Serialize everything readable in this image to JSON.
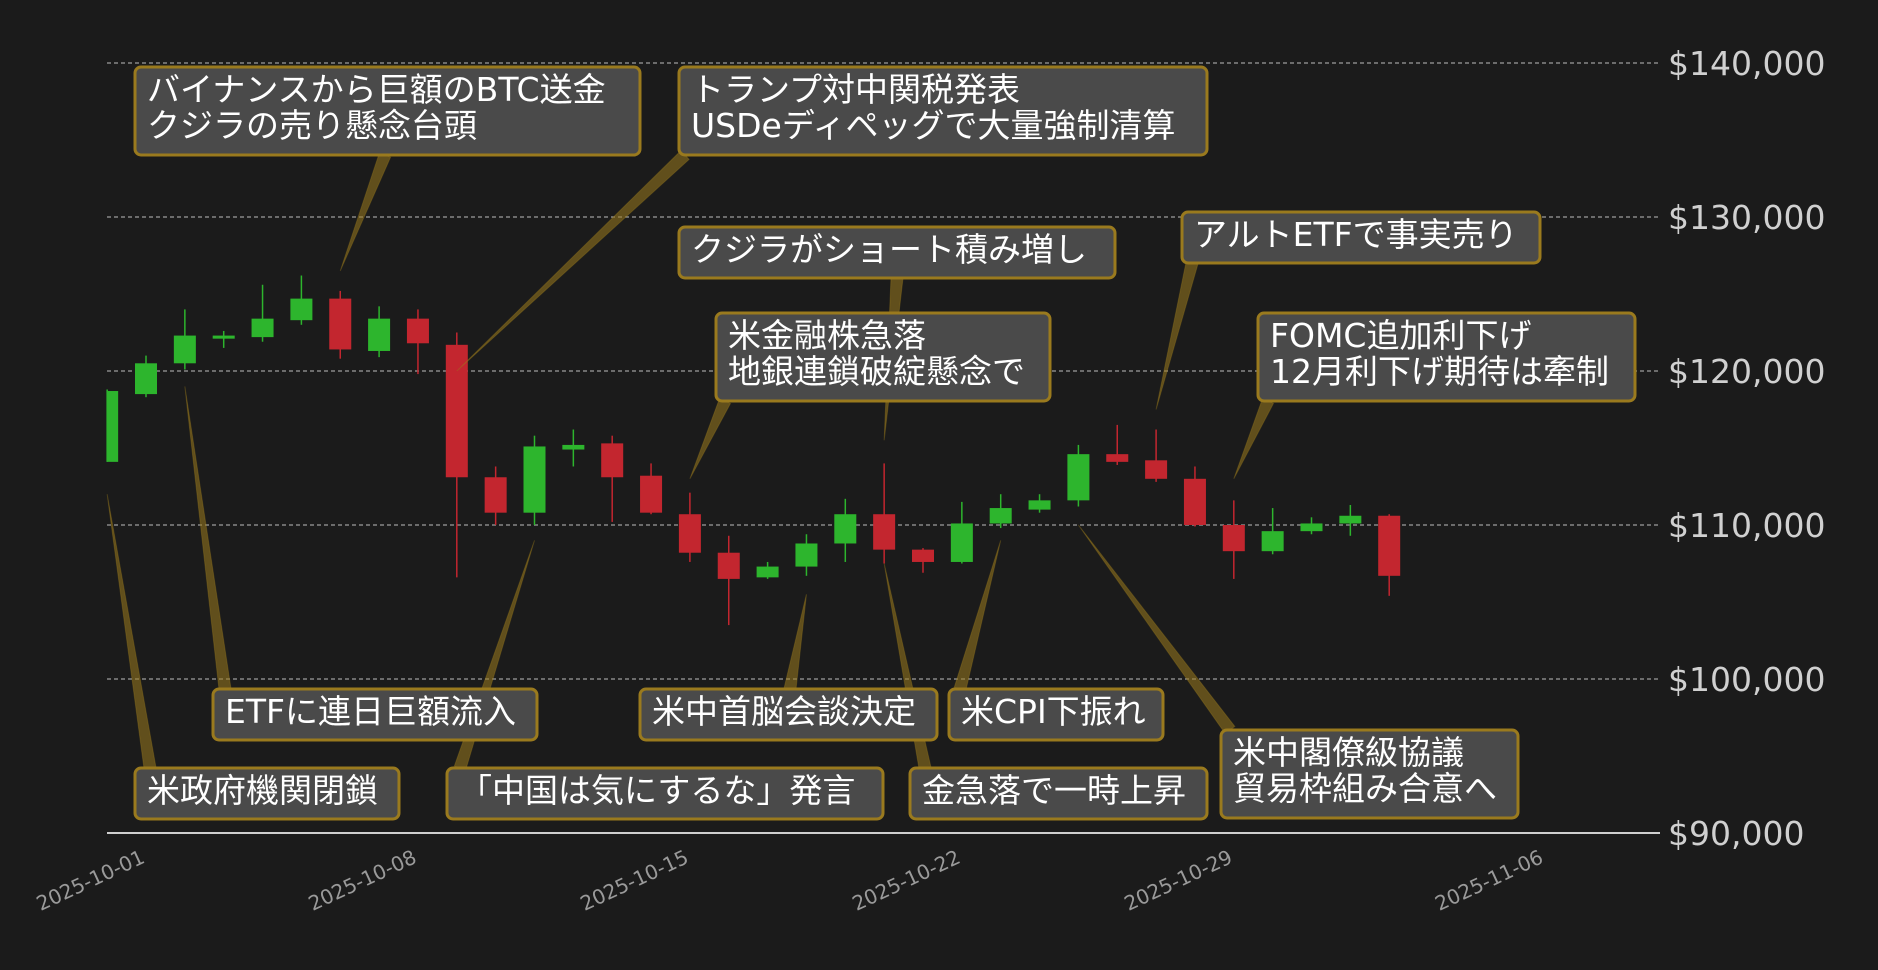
{
  "chart_data": {
    "type": "candlestick",
    "title": "",
    "xlabel": "",
    "ylabel": "",
    "ylim": [
      90000,
      140000
    ],
    "xlim": [
      "2025-10-01",
      "2025-11-06"
    ],
    "x_ticks": [
      "2025-10-01",
      "2025-10-08",
      "2025-10-15",
      "2025-10-22",
      "2025-10-29",
      "2025-11-06"
    ],
    "y_ticks": [
      {
        "value": 90000,
        "label": "$90,000"
      },
      {
        "value": 100000,
        "label": "$100,000"
      },
      {
        "value": 110000,
        "label": "$110,000"
      },
      {
        "value": 120000,
        "label": "$120,000"
      },
      {
        "value": 130000,
        "label": "$130,000"
      },
      {
        "value": 140000,
        "label": "$140,000"
      }
    ],
    "grid": true,
    "colors": {
      "up": "#2db52d",
      "down": "#c3262f",
      "background": "#1b1b1b",
      "annotation_border": "#9a7a1e",
      "annotation_fill": "#4a4a4a"
    },
    "candles": [
      {
        "date": "2025-09-30",
        "open": 114100,
        "high": 118800,
        "low": 114100,
        "close": 118700
      },
      {
        "date": "2025-10-01",
        "open": 118500,
        "high": 121000,
        "low": 118300,
        "close": 120500
      },
      {
        "date": "2025-10-02",
        "open": 120500,
        "high": 124000,
        "low": 120100,
        "close": 122300
      },
      {
        "date": "2025-10-03",
        "open": 122100,
        "high": 122600,
        "low": 121500,
        "close": 122300
      },
      {
        "date": "2025-10-04",
        "open": 122200,
        "high": 125600,
        "low": 121900,
        "close": 123400
      },
      {
        "date": "2025-10-05",
        "open": 123300,
        "high": 126200,
        "low": 123000,
        "close": 124700
      },
      {
        "date": "2025-10-06",
        "open": 124700,
        "high": 125200,
        "low": 120800,
        "close": 121400
      },
      {
        "date": "2025-10-07",
        "open": 121300,
        "high": 124200,
        "low": 120900,
        "close": 123400
      },
      {
        "date": "2025-10-08",
        "open": 123400,
        "high": 124000,
        "low": 119800,
        "close": 121800
      },
      {
        "date": "2025-10-09",
        "open": 121700,
        "high": 122500,
        "low": 106600,
        "close": 113100
      },
      {
        "date": "2025-10-10",
        "open": 113100,
        "high": 113800,
        "low": 110000,
        "close": 110800
      },
      {
        "date": "2025-10-11",
        "open": 110800,
        "high": 115800,
        "low": 110000,
        "close": 115100
      },
      {
        "date": "2025-10-12",
        "open": 114900,
        "high": 116200,
        "low": 113800,
        "close": 115200
      },
      {
        "date": "2025-10-13",
        "open": 115300,
        "high": 115800,
        "low": 110200,
        "close": 113100
      },
      {
        "date": "2025-10-14",
        "open": 113200,
        "high": 114000,
        "low": 110700,
        "close": 110800
      },
      {
        "date": "2025-10-15",
        "open": 110700,
        "high": 112100,
        "low": 107600,
        "close": 108200
      },
      {
        "date": "2025-10-16",
        "open": 108200,
        "high": 109300,
        "low": 103500,
        "close": 106500
      },
      {
        "date": "2025-10-17",
        "open": 106600,
        "high": 107600,
        "low": 106500,
        "close": 107300
      },
      {
        "date": "2025-10-18",
        "open": 107300,
        "high": 109400,
        "low": 106700,
        "close": 108800
      },
      {
        "date": "2025-10-19",
        "open": 108800,
        "high": 111700,
        "low": 107600,
        "close": 110700
      },
      {
        "date": "2025-10-20",
        "open": 110700,
        "high": 114000,
        "low": 107500,
        "close": 108400
      },
      {
        "date": "2025-10-21",
        "open": 108400,
        "high": 108500,
        "low": 106900,
        "close": 107600
      },
      {
        "date": "2025-10-22",
        "open": 107600,
        "high": 111500,
        "low": 107500,
        "close": 110100
      },
      {
        "date": "2025-10-23",
        "open": 110100,
        "high": 112000,
        "low": 109800,
        "close": 111100
      },
      {
        "date": "2025-10-24",
        "open": 111000,
        "high": 112000,
        "low": 110800,
        "close": 111600
      },
      {
        "date": "2025-10-25",
        "open": 111600,
        "high": 115200,
        "low": 111200,
        "close": 114600
      },
      {
        "date": "2025-10-26",
        "open": 114600,
        "high": 116500,
        "low": 113900,
        "close": 114100
      },
      {
        "date": "2025-10-27",
        "open": 114200,
        "high": 116200,
        "low": 112800,
        "close": 113000
      },
      {
        "date": "2025-10-28",
        "open": 113000,
        "high": 113800,
        "low": 109900,
        "close": 110000
      },
      {
        "date": "2025-10-29",
        "open": 110000,
        "high": 111600,
        "low": 106500,
        "close": 108300
      },
      {
        "date": "2025-10-30",
        "open": 108300,
        "high": 111100,
        "low": 108100,
        "close": 109600
      },
      {
        "date": "2025-10-31",
        "open": 109600,
        "high": 110500,
        "low": 109400,
        "close": 110100
      },
      {
        "date": "2025-11-01",
        "open": 110100,
        "high": 111300,
        "low": 109300,
        "close": 110600
      },
      {
        "date": "2025-11-02",
        "open": 110600,
        "high": 110700,
        "low": 105400,
        "close": 106700
      }
    ],
    "annotations": [
      {
        "lines": [
          "米政府機関閉鎖"
        ],
        "date": "2025-09-30",
        "price": 112000
      },
      {
        "lines": [
          "バイナンスから巨額のBTC送金",
          "クジラの売り懸念台頭"
        ],
        "date": "2025-10-06",
        "price": 126500
      },
      {
        "lines": [
          "ETFに連日巨額流入"
        ],
        "date": "2025-10-02",
        "price": 119000
      },
      {
        "lines": [
          "トランプ対中関税発表",
          "USDeディペッグで大量強制清算"
        ],
        "date": "2025-10-09",
        "price": 120000
      },
      {
        "lines": [
          "「中国は気にするな」発言"
        ],
        "date": "2025-10-11",
        "price": 109000
      },
      {
        "lines": [
          "クジラがショート積み増し"
        ],
        "date": "2025-10-20",
        "price": 115500
      },
      {
        "lines": [
          "米金融株急落",
          "地銀連鎖破綻懸念で"
        ],
        "date": "2025-10-15",
        "price": 113000
      },
      {
        "lines": [
          "米中首脳会談決定"
        ],
        "date": "2025-10-18",
        "price": 105500
      },
      {
        "lines": [
          "金急落で一時上昇"
        ],
        "date": "2025-10-20",
        "price": 107500
      },
      {
        "lines": [
          "米CPI下振れ"
        ],
        "date": "2025-10-23",
        "price": 109000
      },
      {
        "lines": [
          "アルトETFで事実売り"
        ],
        "date": "2025-10-27",
        "price": 117500
      },
      {
        "lines": [
          "FOMC追加利下げ",
          "12月利下げ期待は牽制"
        ],
        "date": "2025-10-29",
        "price": 113000
      },
      {
        "lines": [
          "米中閣僚級協議",
          "貿易枠組み合意へ"
        ],
        "date": "2025-10-25",
        "price": 110000
      }
    ]
  }
}
